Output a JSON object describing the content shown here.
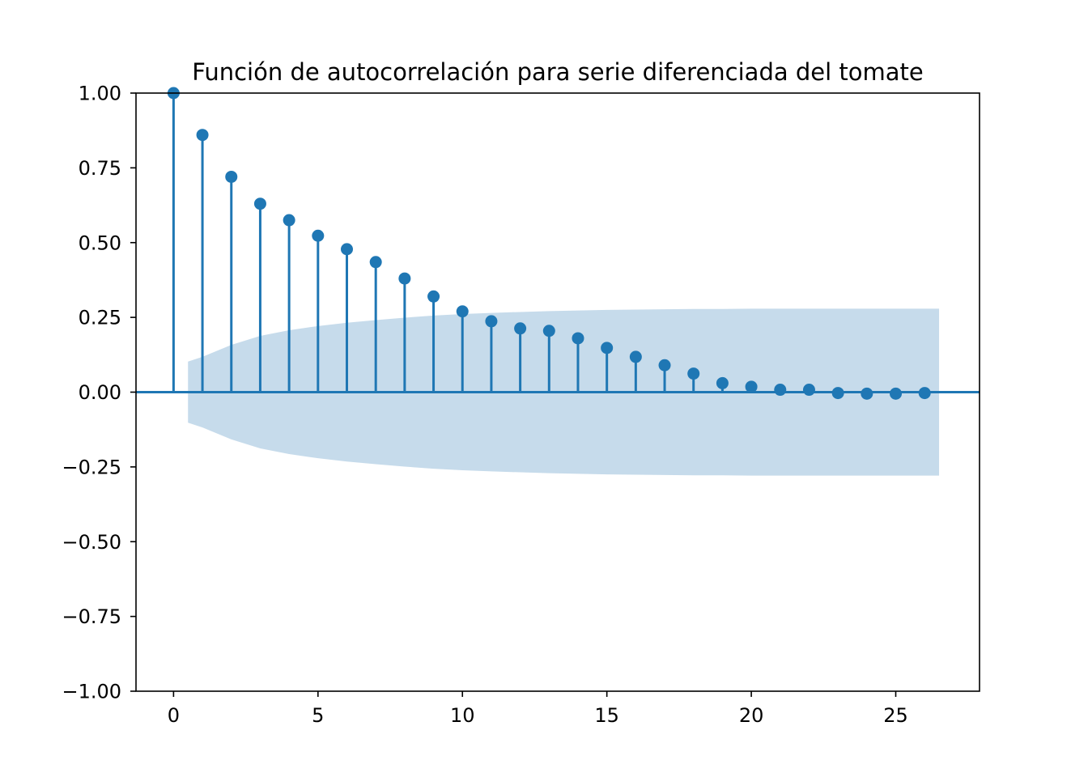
{
  "chart_data": {
    "type": "scatter",
    "style": "stem",
    "title": "Función de autocorrelación para serie diferenciada del tomate",
    "xlabel": "",
    "ylabel": "",
    "xlim": [
      -1.3,
      27.9
    ],
    "ylim": [
      -1.0,
      1.0
    ],
    "x_ticks": [
      0,
      5,
      10,
      15,
      20,
      25
    ],
    "x_tick_labels": [
      "0",
      "5",
      "10",
      "15",
      "20",
      "25"
    ],
    "y_ticks": [
      1.0,
      0.75,
      0.5,
      0.25,
      0.0,
      -0.25,
      -0.5,
      -0.75,
      -1.0
    ],
    "y_tick_labels": [
      "1.00",
      "0.75",
      "0.50",
      "0.25",
      "0.00",
      "−0.25",
      "−0.50",
      "−0.75",
      "−1.00"
    ],
    "grid": false,
    "lags": [
      0,
      1,
      2,
      3,
      4,
      5,
      6,
      7,
      8,
      9,
      10,
      11,
      12,
      13,
      14,
      15,
      16,
      17,
      18,
      19,
      20,
      21,
      22,
      23,
      24,
      25,
      26
    ],
    "acf": [
      1.0,
      0.86,
      0.72,
      0.63,
      0.575,
      0.523,
      0.478,
      0.435,
      0.38,
      0.32,
      0.27,
      0.237,
      0.213,
      0.205,
      0.18,
      0.148,
      0.118,
      0.09,
      0.062,
      0.03,
      0.018,
      0.008,
      0.008,
      -0.003,
      -0.005,
      -0.005,
      -0.003
    ],
    "confidence_band": {
      "x": [
        0.5,
        1,
        2,
        3,
        4,
        5,
        6,
        7,
        8,
        9,
        10,
        11,
        12,
        13,
        14,
        15,
        16,
        17,
        18,
        19,
        20,
        21,
        22,
        23,
        24,
        25,
        26,
        26.5
      ],
      "upper": [
        0.102,
        0.118,
        0.158,
        0.188,
        0.207,
        0.221,
        0.232,
        0.241,
        0.249,
        0.256,
        0.261,
        0.265,
        0.268,
        0.271,
        0.273,
        0.275,
        0.276,
        0.277,
        0.278,
        0.278,
        0.279,
        0.279,
        0.279,
        0.279,
        0.279,
        0.279,
        0.279,
        0.279
      ],
      "lower": [
        -0.102,
        -0.118,
        -0.158,
        -0.188,
        -0.207,
        -0.221,
        -0.232,
        -0.241,
        -0.249,
        -0.256,
        -0.261,
        -0.265,
        -0.268,
        -0.271,
        -0.273,
        -0.275,
        -0.276,
        -0.277,
        -0.278,
        -0.278,
        -0.279,
        -0.279,
        -0.279,
        -0.279,
        -0.279,
        -0.279,
        -0.279,
        -0.279
      ]
    },
    "colors": {
      "series": "#1f77b4",
      "band": "#c6dbeb",
      "axes": "#000000"
    }
  }
}
